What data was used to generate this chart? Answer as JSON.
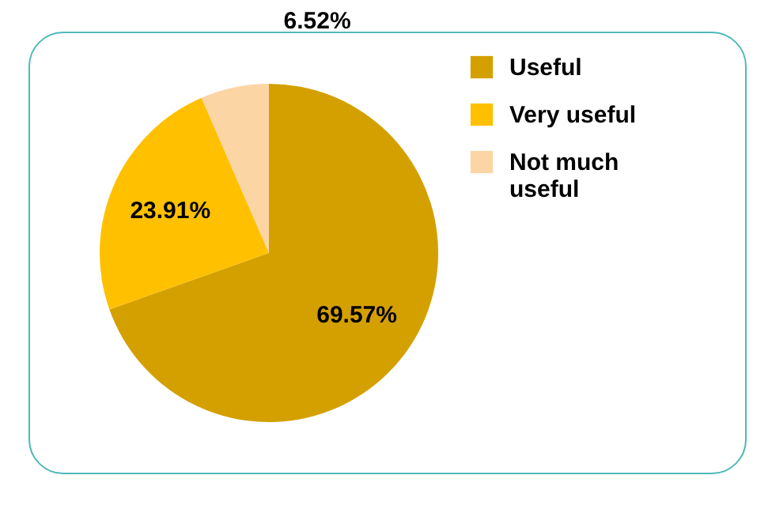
{
  "chart_data": {
    "type": "pie",
    "categories": [
      "Useful",
      "Very useful",
      "Not much useful"
    ],
    "values": [
      69.57,
      23.91,
      6.52
    ],
    "colors": [
      "#d4a000",
      "#ffc000",
      "#fcd5a5"
    ],
    "value_labels": [
      "69.57%",
      "23.91%",
      "6.52%"
    ],
    "legend": "right"
  }
}
